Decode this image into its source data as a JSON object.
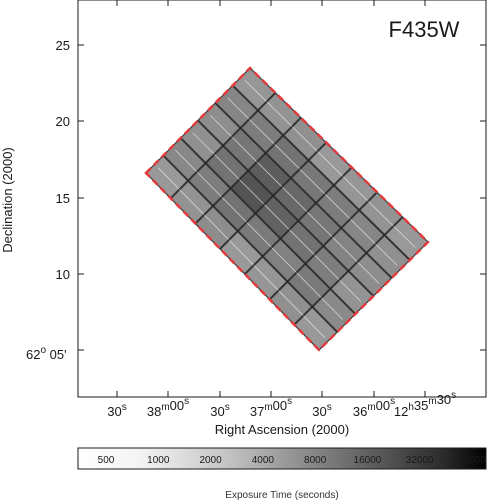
{
  "chart_data": {
    "type": "heatmap",
    "title": "F435W",
    "xlabel": "Right Ascension (2000)",
    "ylabel": "Declination (2000)",
    "x_tick_labels": [
      {
        "main": "30",
        "sup": "s"
      },
      {
        "main": "38",
        "sup": "m",
        "main2": "00",
        "sup2": "s"
      },
      {
        "main": "30",
        "sup": "s"
      },
      {
        "main": "37",
        "sup": "m",
        "main2": "00",
        "sup2": "s"
      },
      {
        "main": "30",
        "sup": "s"
      },
      {
        "main": "36",
        "sup": "m",
        "main2": "00",
        "sup2": "s"
      },
      {
        "main": "12",
        "sup": "h",
        "main2": "35",
        "sup2": "m",
        "main3": "30",
        "sup3": "s"
      }
    ],
    "y_ticks": [
      25,
      20,
      15,
      10
    ],
    "y_bottom_label": {
      "pre": "62",
      "sup": "o",
      "post": " 05'"
    },
    "colorbar": {
      "title": "Exposure Time (seconds)",
      "labels": [
        "500",
        "1000",
        "2000",
        "4000",
        "8000",
        "16000",
        "32000",
        "64000"
      ],
      "scale": "log"
    },
    "mosaic": {
      "rows": 6,
      "cols": 7,
      "exposure_seconds": [
        [
          3000,
          3400,
          3800,
          3000,
          3200,
          3600,
          3000
        ],
        [
          4200,
          5200,
          6400,
          5600,
          4800,
          5600,
          4000
        ],
        [
          3600,
          6400,
          12000,
          9000,
          6400,
          5200,
          3400
        ],
        [
          3800,
          6000,
          10000,
          8000,
          6000,
          4600,
          3800
        ],
        [
          4400,
          5200,
          6400,
          5800,
          5200,
          4400,
          3600
        ],
        [
          3200,
          3400,
          3600,
          3000,
          3200,
          3400,
          3000
        ]
      ]
    },
    "footprint_outline_color": "#e23b3b"
  }
}
